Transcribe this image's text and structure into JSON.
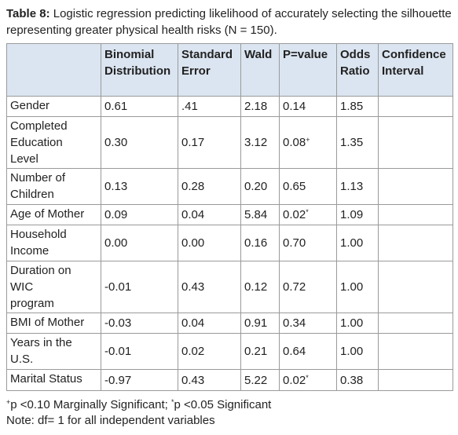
{
  "caption": {
    "label": "Table 8:",
    "text": "Logistic regression predicting likelihood of accurately selecting the silhouette representing greater physical health risks (N = 150)."
  },
  "table": {
    "header": [
      [
        "Binomial",
        "Distribution"
      ],
      [
        "Standard",
        "Error"
      ],
      [
        "Wald"
      ],
      [
        "P=value"
      ],
      [
        "Odds",
        "Ratio"
      ],
      [
        "Confidence",
        "Interval"
      ]
    ],
    "rows": [
      {
        "label": [
          "Gender"
        ],
        "cells": [
          "0.61",
          ".41",
          "2.18",
          "0.14",
          "1.85"
        ]
      },
      {
        "label": [
          "Completed",
          "Education",
          "Level"
        ],
        "cells": [
          "0.30",
          "0.17",
          "3.12",
          {
            "value": "0.08",
            "mark": "+"
          },
          "1.35"
        ]
      },
      {
        "label": [
          "Number of",
          "Children"
        ],
        "cells": [
          "0.13",
          "0.28",
          "0.20",
          "0.65",
          "1.13"
        ]
      },
      {
        "label": [
          "Age of Mother"
        ],
        "cells": [
          "0.09",
          "0.04",
          "5.84",
          {
            "value": "0.02",
            "mark": "*"
          },
          "1.09"
        ]
      },
      {
        "label": [
          "Household",
          "Income"
        ],
        "cells": [
          "0.00",
          "0.00",
          "0.16",
          "0.70",
          "1.00"
        ]
      },
      {
        "label": [
          "Duration on",
          "WIC",
          "program"
        ],
        "cells": [
          "-0.01",
          "0.43",
          "0.12",
          "0.72",
          "1.00"
        ]
      },
      {
        "label": [
          "BMI of Mother"
        ],
        "cells": [
          "-0.03",
          "0.04",
          "0.91",
          "0.34",
          "1.00"
        ]
      },
      {
        "label": [
          "Years in the",
          "U.S."
        ],
        "cells": [
          "-0.01",
          "0.02",
          "0.21",
          "0.64",
          "1.00"
        ]
      },
      {
        "label": [
          "Marital Status"
        ],
        "cells": [
          "-0.97",
          "0.43",
          "5.22",
          {
            "value": "0.02",
            "mark": "*"
          },
          "0.38"
        ]
      }
    ]
  },
  "footnotes": {
    "marks": [
      {
        "mark": "+",
        "text": "p <0.10 Marginally Significant;"
      },
      {
        "mark": "*",
        "text": "p <0.05 Significant"
      }
    ],
    "note": "Note: df= 1 for all independent variables"
  }
}
